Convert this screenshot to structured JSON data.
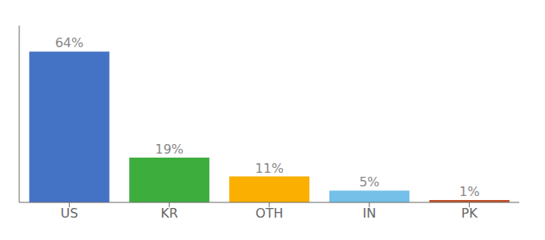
{
  "chart_data": {
    "type": "bar",
    "categories": [
      "US",
      "KR",
      "OTH",
      "IN",
      "PK"
    ],
    "values": [
      64,
      19,
      11,
      5,
      1
    ],
    "value_labels": [
      "64%",
      "19%",
      "11%",
      "5%",
      "1%"
    ],
    "data_labels": true,
    "colors": [
      "#4472c4",
      "#3dae3d",
      "#fbaf00",
      "#74c0e8",
      "#c0522a"
    ],
    "ylim": [
      0,
      75
    ],
    "tick_labels": "x",
    "grid": false
  }
}
